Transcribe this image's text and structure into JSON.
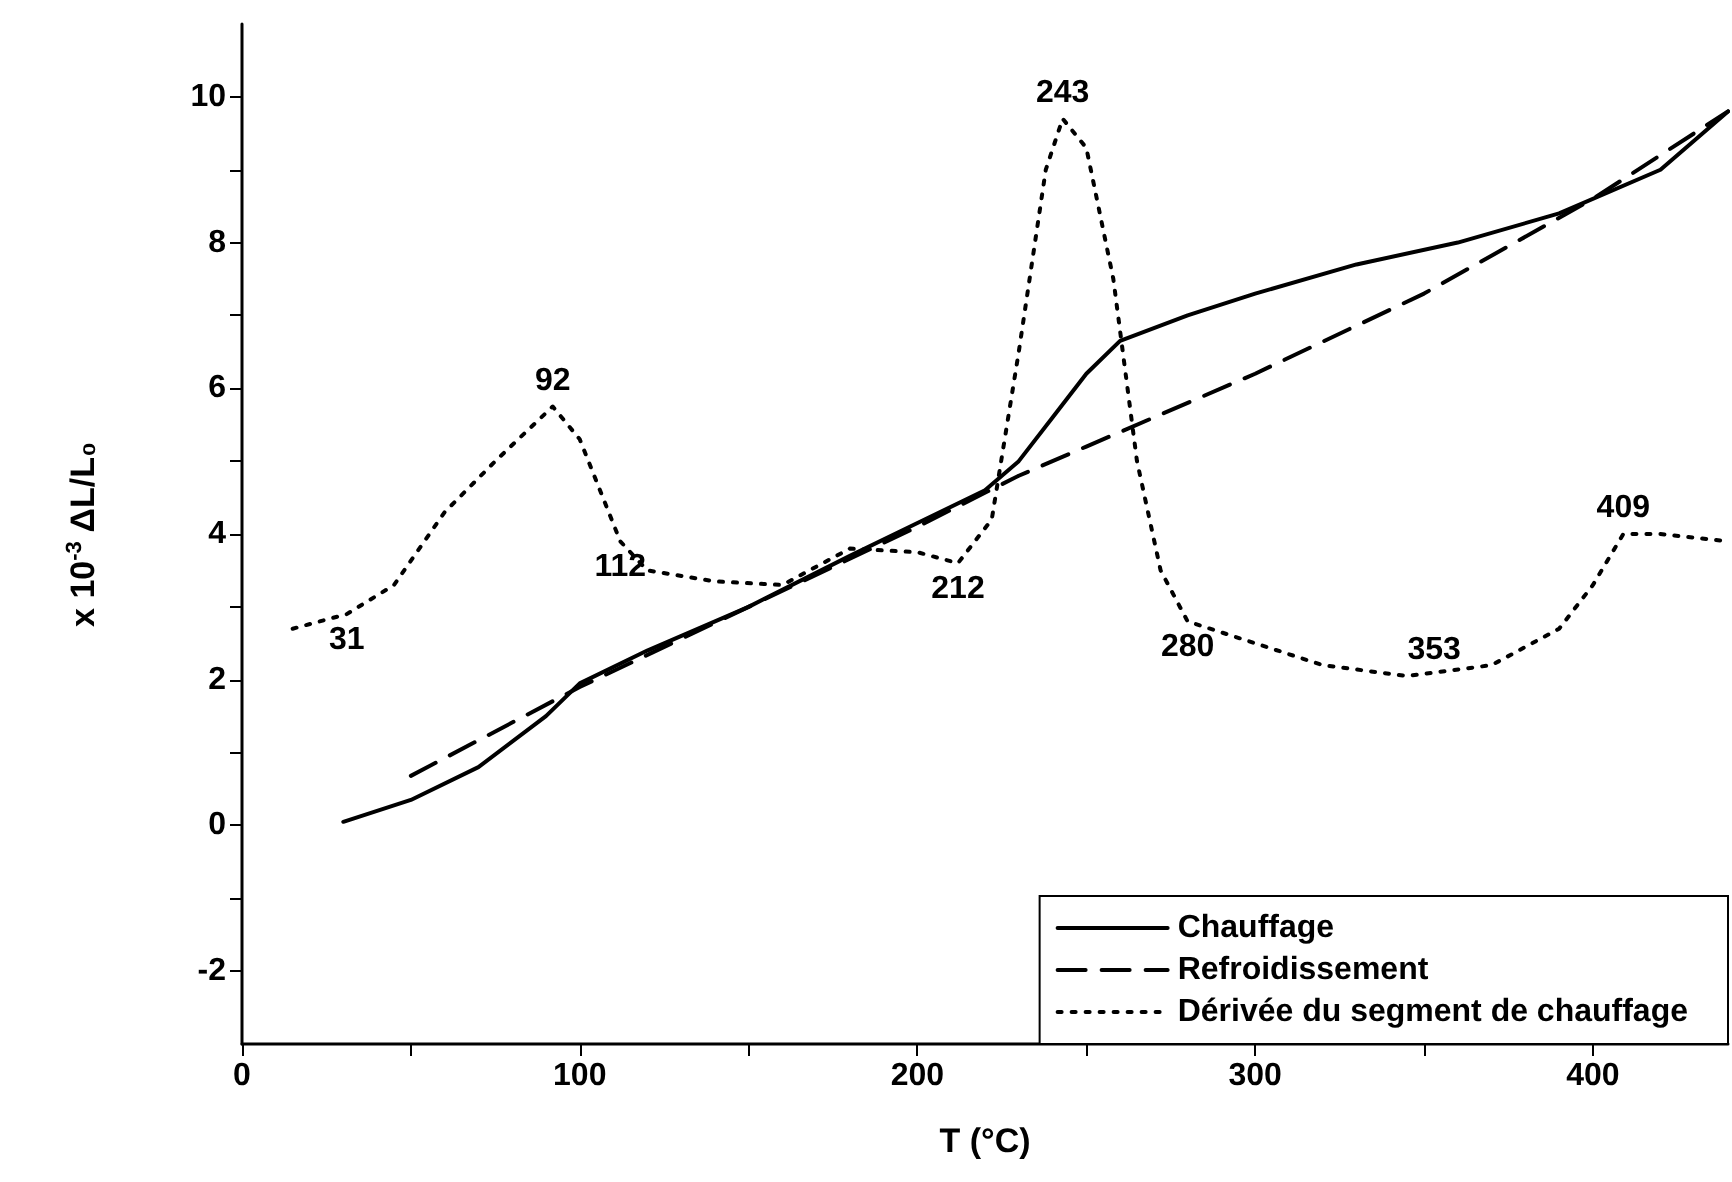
{
  "chart_data": {
    "type": "line",
    "xlabel": "T (°C)",
    "ylabel": "x 10$^{-3}$ ΔL/L₀",
    "xlim": [
      0,
      440
    ],
    "xticks": [
      0,
      {
        "value": 50,
        "label": null
      },
      100,
      {
        "value": 150,
        "label": null
      },
      200,
      {
        "value": 250,
        "label": null
      },
      300,
      {
        "value": 350,
        "label": null
      },
      400
    ],
    "ylim": [
      -3,
      11
    ],
    "yticks": [
      -2,
      {
        "value": -1,
        "label": null
      },
      0,
      {
        "value": 1,
        "label": null
      },
      2,
      {
        "value": 3,
        "label": null
      },
      4,
      {
        "value": 5,
        "label": null
      },
      6,
      {
        "value": 7,
        "label": null
      },
      8,
      {
        "value": 9,
        "label": null
      },
      10
    ],
    "grid": false,
    "legend": "bottom right",
    "marker": "none",
    "series": [
      {
        "name": "Chauffage",
        "color": "#000000",
        "line_style": "solid",
        "x": [
          30,
          50,
          70,
          90,
          100,
          120,
          150,
          180,
          200,
          220,
          230,
          240,
          250,
          260,
          280,
          300,
          330,
          360,
          390,
          420,
          440
        ],
        "values": [
          0.05,
          0.35,
          0.8,
          1.5,
          1.95,
          2.4,
          3.0,
          3.7,
          4.15,
          4.6,
          5.0,
          5.6,
          6.2,
          6.65,
          7.0,
          7.3,
          7.7,
          8.0,
          8.4,
          9.0,
          9.8
        ]
      },
      {
        "name": "Refroidissement",
        "color": "#000000",
        "line_style": "dashed",
        "x": [
          50,
          100,
          150,
          200,
          230,
          250,
          300,
          350,
          400,
          440
        ],
        "values": [
          0.68,
          1.9,
          3.0,
          4.1,
          4.8,
          5.2,
          6.2,
          7.3,
          8.6,
          9.8
        ]
      },
      {
        "name": "Dérivée du segment de chauffage",
        "color": "#000000",
        "line_style": "dotted",
        "x": [
          15,
          31,
          45,
          60,
          75,
          92,
          100,
          112,
          120,
          140,
          160,
          180,
          200,
          212,
          222,
          230,
          238,
          243,
          250,
          258,
          265,
          272,
          280,
          300,
          320,
          345,
          370,
          390,
          400,
          409,
          420,
          440
        ],
        "values": [
          2.7,
          2.9,
          3.3,
          4.3,
          5.0,
          5.75,
          5.3,
          3.9,
          3.5,
          3.35,
          3.3,
          3.8,
          3.75,
          3.6,
          4.2,
          6.5,
          9.0,
          9.7,
          9.3,
          7.5,
          5.0,
          3.5,
          2.8,
          2.5,
          2.2,
          2.05,
          2.2,
          2.7,
          3.3,
          4.0,
          4.0,
          3.9
        ]
      }
    ],
    "annotations": [
      {
        "text": "31",
        "x": 31,
        "y": 2.9
      },
      {
        "text": "92",
        "x": 92,
        "y": 5.75
      },
      {
        "text": "112",
        "x": 112,
        "y": 3.9
      },
      {
        "text": "212",
        "x": 212,
        "y": 3.6
      },
      {
        "text": "243",
        "x": 243,
        "y": 9.7
      },
      {
        "text": "280",
        "x": 280,
        "y": 2.8
      },
      {
        "text": "353",
        "x": 353,
        "y": 2.05
      },
      {
        "text": "409",
        "x": 409,
        "y": 4.0
      }
    ]
  }
}
